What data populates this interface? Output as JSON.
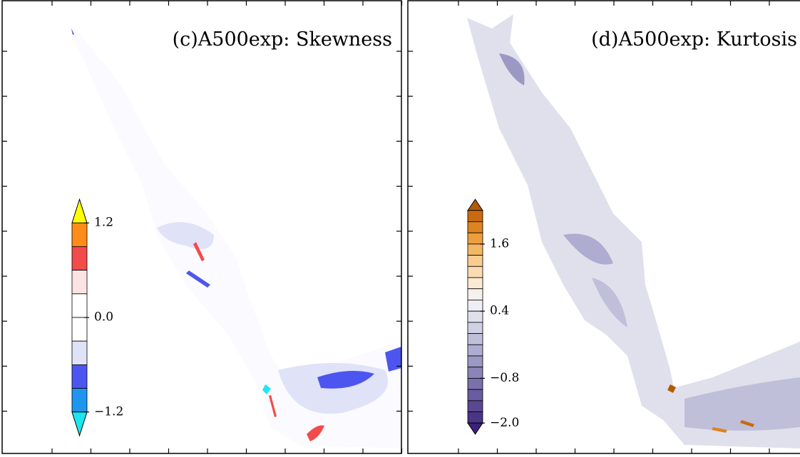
{
  "panels": [
    {
      "title": "(c)A500exp: Skewness",
      "colorbar": {
        "labels": [
          "1.2",
          "0.0",
          "−1.2"
        ],
        "colors": [
          "#ffff00",
          "#ff8c1a",
          "#f24b4b",
          "#fbe3e3",
          "#ffffff",
          "#ffffff",
          "#e0e2f8",
          "#4d55f0",
          "#1e96f0",
          "#1ee6f0"
        ]
      }
    },
    {
      "title": "(d)A500exp: Kurtosis",
      "colorbar": {
        "labels": [
          "1.6",
          "0.4",
          "−0.8",
          "−2.0"
        ],
        "colors": [
          "#b35a06",
          "#c96a10",
          "#dd8420",
          "#ec9e3e",
          "#f4b766",
          "#f9cd8f",
          "#fbdcb2",
          "#fcead3",
          "#f6f1ec",
          "#eeeef4",
          "#e0e0ec",
          "#d0d0e4",
          "#c0bfda",
          "#aeacd0",
          "#9c98c4",
          "#8a84b8",
          "#7a70ac",
          "#6a5ca0",
          "#5a4893",
          "#4b3587",
          "#3f207a"
        ]
      }
    }
  ]
}
